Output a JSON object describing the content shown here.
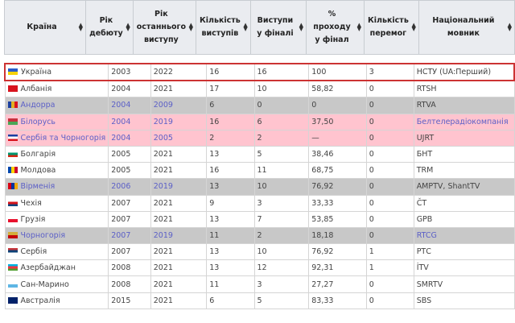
{
  "headers": [
    "Країна",
    "Рік дебюту",
    "Рік останнього виступу",
    "Кількість виступів",
    "Виступи у фіналі",
    "% проходу у фінал",
    "Кількість перемог",
    "Національний мовник"
  ],
  "rows": [
    {
      "country": "Україна",
      "debut": "2003",
      "last": "2022",
      "entries": "16",
      "finals": "16",
      "pct": "100",
      "wins": "3",
      "broadcaster": "НСТУ (UA:Перший)",
      "style": "hl",
      "flag": [
        "#2a5cc8",
        "#f5d20a"
      ]
    },
    {
      "country": "Албанія",
      "debut": "2004",
      "last": "2021",
      "entries": "17",
      "finals": "10",
      "pct": "58,82",
      "wins": "0",
      "broadcaster": "RTSH",
      "style": "",
      "flag": [
        "#d8141e",
        "#d8141e"
      ]
    },
    {
      "country": "Андорра",
      "debut": "2004",
      "last": "2009",
      "entries": "6",
      "finals": "0",
      "pct": "0",
      "wins": "0",
      "broadcaster": "RTVA",
      "style": "grey",
      "flag": [
        "#1b3fa0",
        "#e0b020",
        "#d8141e"
      ],
      "link": true
    },
    {
      "country": "Білорусь",
      "debut": "2004",
      "last": "2019",
      "entries": "16",
      "finals": "6",
      "pct": "37,50",
      "wins": "0",
      "broadcaster": "Белтелерадіокомпанія",
      "style": "pink",
      "flag": [
        "#c8313e",
        "#4aa657"
      ],
      "link": true,
      "blink": true
    },
    {
      "country": "Сербія та Чорногорія",
      "debut": "2004",
      "last": "2005",
      "entries": "2",
      "finals": "2",
      "pct": "—",
      "wins": "0",
      "broadcaster": "UJRT",
      "style": "pink",
      "flag": [
        "#1b3fa0",
        "#ffffff",
        "#d8141e"
      ],
      "link": true
    },
    {
      "country": "Болгарія",
      "debut": "2005",
      "last": "2021",
      "entries": "13",
      "finals": "5",
      "pct": "38,46",
      "wins": "0",
      "broadcaster": "БНТ",
      "style": "",
      "flag": [
        "#ffffff",
        "#00966e",
        "#d62612"
      ]
    },
    {
      "country": "Молдова",
      "debut": "2005",
      "last": "2021",
      "entries": "16",
      "finals": "11",
      "pct": "68,75",
      "wins": "0",
      "broadcaster": "TRM",
      "style": "",
      "flag": [
        "#0046ae",
        "#ffd200",
        "#cc092f"
      ]
    },
    {
      "country": "Вірменія",
      "debut": "2006",
      "last": "2019",
      "entries": "13",
      "finals": "10",
      "pct": "76,92",
      "wins": "0",
      "broadcaster": "AMPTV, ShantTV",
      "style": "grey",
      "flag": [
        "#d90012",
        "#0033a0",
        "#f2a800"
      ],
      "link": true
    },
    {
      "country": "Чехія",
      "debut": "2007",
      "last": "2021",
      "entries": "9",
      "finals": "3",
      "pct": "33,33",
      "wins": "0",
      "broadcaster": "ČT",
      "style": "",
      "flag": [
        "#ffffff",
        "#d7141a",
        "#11457e"
      ]
    },
    {
      "country": "Грузія",
      "debut": "2007",
      "last": "2021",
      "entries": "13",
      "finals": "7",
      "pct": "53,85",
      "wins": "0",
      "broadcaster": "GPB",
      "style": "",
      "flag": [
        "#ffffff",
        "#e8112d"
      ]
    },
    {
      "country": "Чорногорія",
      "debut": "2007",
      "last": "2019",
      "entries": "11",
      "finals": "2",
      "pct": "18,18",
      "wins": "0",
      "broadcaster": "RTCG",
      "style": "grey",
      "flag": [
        "#d3ae3b",
        "#c40308"
      ],
      "link": true,
      "blink": true
    },
    {
      "country": "Сербія",
      "debut": "2007",
      "last": "2021",
      "entries": "13",
      "finals": "10",
      "pct": "76,92",
      "wins": "1",
      "broadcaster": "РТС",
      "style": "",
      "flag": [
        "#c6363c",
        "#0c4076",
        "#ffffff"
      ]
    },
    {
      "country": "Азербайджан",
      "debut": "2008",
      "last": "2021",
      "entries": "13",
      "finals": "12",
      "pct": "92,31",
      "wins": "1",
      "broadcaster": "İTV",
      "style": "",
      "flag": [
        "#00b5e2",
        "#ef3340",
        "#509e2f"
      ]
    },
    {
      "country": "Сан-Марино",
      "debut": "2008",
      "last": "2021",
      "entries": "11",
      "finals": "3",
      "pct": "27,27",
      "wins": "0",
      "broadcaster": "SMRTV",
      "style": "",
      "flag": [
        "#ffffff",
        "#5eb6e4"
      ]
    },
    {
      "country": "Австралія",
      "debut": "2015",
      "last": "2021",
      "entries": "6",
      "finals": "5",
      "pct": "83,33",
      "wins": "0",
      "broadcaster": "SBS",
      "style": "",
      "flag": [
        "#012169",
        "#012169"
      ]
    }
  ],
  "sort_icon": "sort-icon"
}
